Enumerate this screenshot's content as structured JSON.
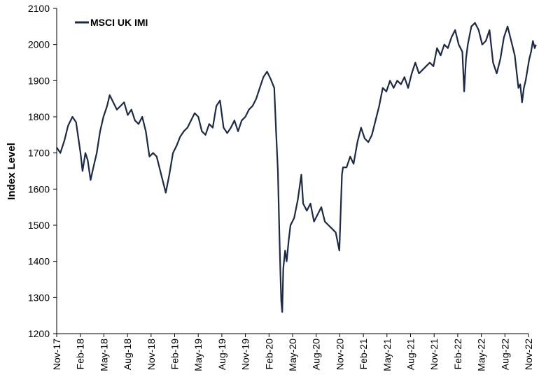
{
  "chart_data": {
    "type": "line",
    "title": "",
    "xlabel": "",
    "ylabel": "Index Level",
    "ylim": [
      1200,
      2100
    ],
    "yticks": [
      1200,
      1300,
      1400,
      1500,
      1600,
      1700,
      1800,
      1900,
      2000,
      2100
    ],
    "xlim": [
      "2017-11",
      "2022-11"
    ],
    "xticks": [
      "Nov-17",
      "Feb-18",
      "May-18",
      "Aug-18",
      "Nov-18",
      "Feb-19",
      "May-19",
      "Aug-19",
      "Nov-19",
      "Feb-20",
      "May-20",
      "Aug-20",
      "Nov-20",
      "Feb-21",
      "May-21",
      "Aug-21",
      "Nov-21",
      "Feb-22",
      "May-22",
      "Aug-22",
      "Nov-22"
    ],
    "grid": false,
    "legend_position": "top-left",
    "colors": {
      "series": "#1b2a45",
      "axis": "#000000"
    },
    "series": [
      {
        "name": "MSCI UK IMI",
        "x": [
          "2017-11-01",
          "2017-11-15",
          "2017-12-01",
          "2017-12-15",
          "2018-01-01",
          "2018-01-15",
          "2018-02-01",
          "2018-02-09",
          "2018-02-20",
          "2018-03-01",
          "2018-03-12",
          "2018-03-23",
          "2018-04-05",
          "2018-04-18",
          "2018-05-01",
          "2018-05-15",
          "2018-05-25",
          "2018-06-08",
          "2018-06-22",
          "2018-07-06",
          "2018-07-20",
          "2018-08-03",
          "2018-08-17",
          "2018-08-31",
          "2018-09-14",
          "2018-09-28",
          "2018-10-12",
          "2018-10-26",
          "2018-11-09",
          "2018-11-23",
          "2018-12-07",
          "2018-12-21",
          "2018-12-28",
          "2019-01-11",
          "2019-01-25",
          "2019-02-08",
          "2019-02-22",
          "2019-03-08",
          "2019-03-22",
          "2019-04-05",
          "2019-04-19",
          "2019-05-03",
          "2019-05-17",
          "2019-05-31",
          "2019-06-14",
          "2019-06-28",
          "2019-07-12",
          "2019-07-26",
          "2019-08-09",
          "2019-08-23",
          "2019-09-06",
          "2019-09-20",
          "2019-10-04",
          "2019-10-18",
          "2019-11-01",
          "2019-11-15",
          "2019-11-29",
          "2019-12-13",
          "2019-12-27",
          "2020-01-10",
          "2020-01-24",
          "2020-02-07",
          "2020-02-21",
          "2020-02-28",
          "2020-03-06",
          "2020-03-12",
          "2020-03-16",
          "2020-03-19",
          "2020-03-23",
          "2020-03-27",
          "2020-04-03",
          "2020-04-09",
          "2020-04-17",
          "2020-04-24",
          "2020-05-08",
          "2020-05-22",
          "2020-06-05",
          "2020-06-12",
          "2020-06-26",
          "2020-07-10",
          "2020-07-24",
          "2020-08-07",
          "2020-08-21",
          "2020-09-04",
          "2020-09-18",
          "2020-10-02",
          "2020-10-16",
          "2020-10-30",
          "2020-11-09",
          "2020-11-13",
          "2020-11-27",
          "2020-12-11",
          "2020-12-24",
          "2021-01-08",
          "2021-01-22",
          "2021-02-05",
          "2021-02-19",
          "2021-03-05",
          "2021-03-19",
          "2021-04-02",
          "2021-04-16",
          "2021-04-30",
          "2021-05-14",
          "2021-05-28",
          "2021-06-11",
          "2021-06-25",
          "2021-07-09",
          "2021-07-23",
          "2021-08-06",
          "2021-08-20",
          "2021-09-03",
          "2021-09-17",
          "2021-10-01",
          "2021-10-15",
          "2021-10-29",
          "2021-11-12",
          "2021-11-26",
          "2021-12-10",
          "2021-12-24",
          "2022-01-07",
          "2022-01-21",
          "2022-02-04",
          "2022-02-18",
          "2022-02-25",
          "2022-03-04",
          "2022-03-11",
          "2022-03-25",
          "2022-04-08",
          "2022-04-22",
          "2022-05-06",
          "2022-05-20",
          "2022-06-03",
          "2022-06-17",
          "2022-07-01",
          "2022-07-15",
          "2022-07-29",
          "2022-08-12",
          "2022-08-26",
          "2022-09-09",
          "2022-09-23",
          "2022-09-30",
          "2022-10-07",
          "2022-10-14",
          "2022-10-21",
          "2022-10-28",
          "2022-11-04",
          "2022-11-11",
          "2022-11-18",
          "2022-11-25",
          "2022-11-30"
        ],
        "values": [
          1715,
          1700,
          1735,
          1775,
          1800,
          1785,
          1700,
          1650,
          1700,
          1680,
          1625,
          1660,
          1700,
          1760,
          1800,
          1830,
          1860,
          1840,
          1820,
          1830,
          1840,
          1805,
          1820,
          1790,
          1780,
          1800,
          1760,
          1690,
          1700,
          1690,
          1650,
          1610,
          1590,
          1640,
          1700,
          1720,
          1745,
          1760,
          1770,
          1790,
          1810,
          1800,
          1760,
          1750,
          1780,
          1770,
          1830,
          1845,
          1770,
          1755,
          1770,
          1790,
          1760,
          1790,
          1800,
          1820,
          1830,
          1850,
          1880,
          1910,
          1925,
          1905,
          1880,
          1760,
          1650,
          1470,
          1360,
          1290,
          1260,
          1380,
          1430,
          1400,
          1460,
          1500,
          1520,
          1570,
          1640,
          1560,
          1540,
          1560,
          1510,
          1530,
          1550,
          1510,
          1500,
          1490,
          1480,
          1430,
          1640,
          1660,
          1660,
          1690,
          1670,
          1730,
          1770,
          1740,
          1730,
          1750,
          1790,
          1830,
          1880,
          1870,
          1900,
          1880,
          1900,
          1890,
          1910,
          1880,
          1920,
          1950,
          1920,
          1930,
          1940,
          1950,
          1940,
          1990,
          1970,
          2000,
          1990,
          2020,
          2040,
          2000,
          1980,
          1870,
          1960,
          2000,
          2050,
          2060,
          2040,
          2000,
          2010,
          2040,
          1950,
          1920,
          1960,
          2020,
          2050,
          2010,
          1970,
          1880,
          1890,
          1840,
          1880,
          1900,
          1930,
          1960,
          1980,
          2010,
          1990,
          2000
        ]
      }
    ]
  }
}
